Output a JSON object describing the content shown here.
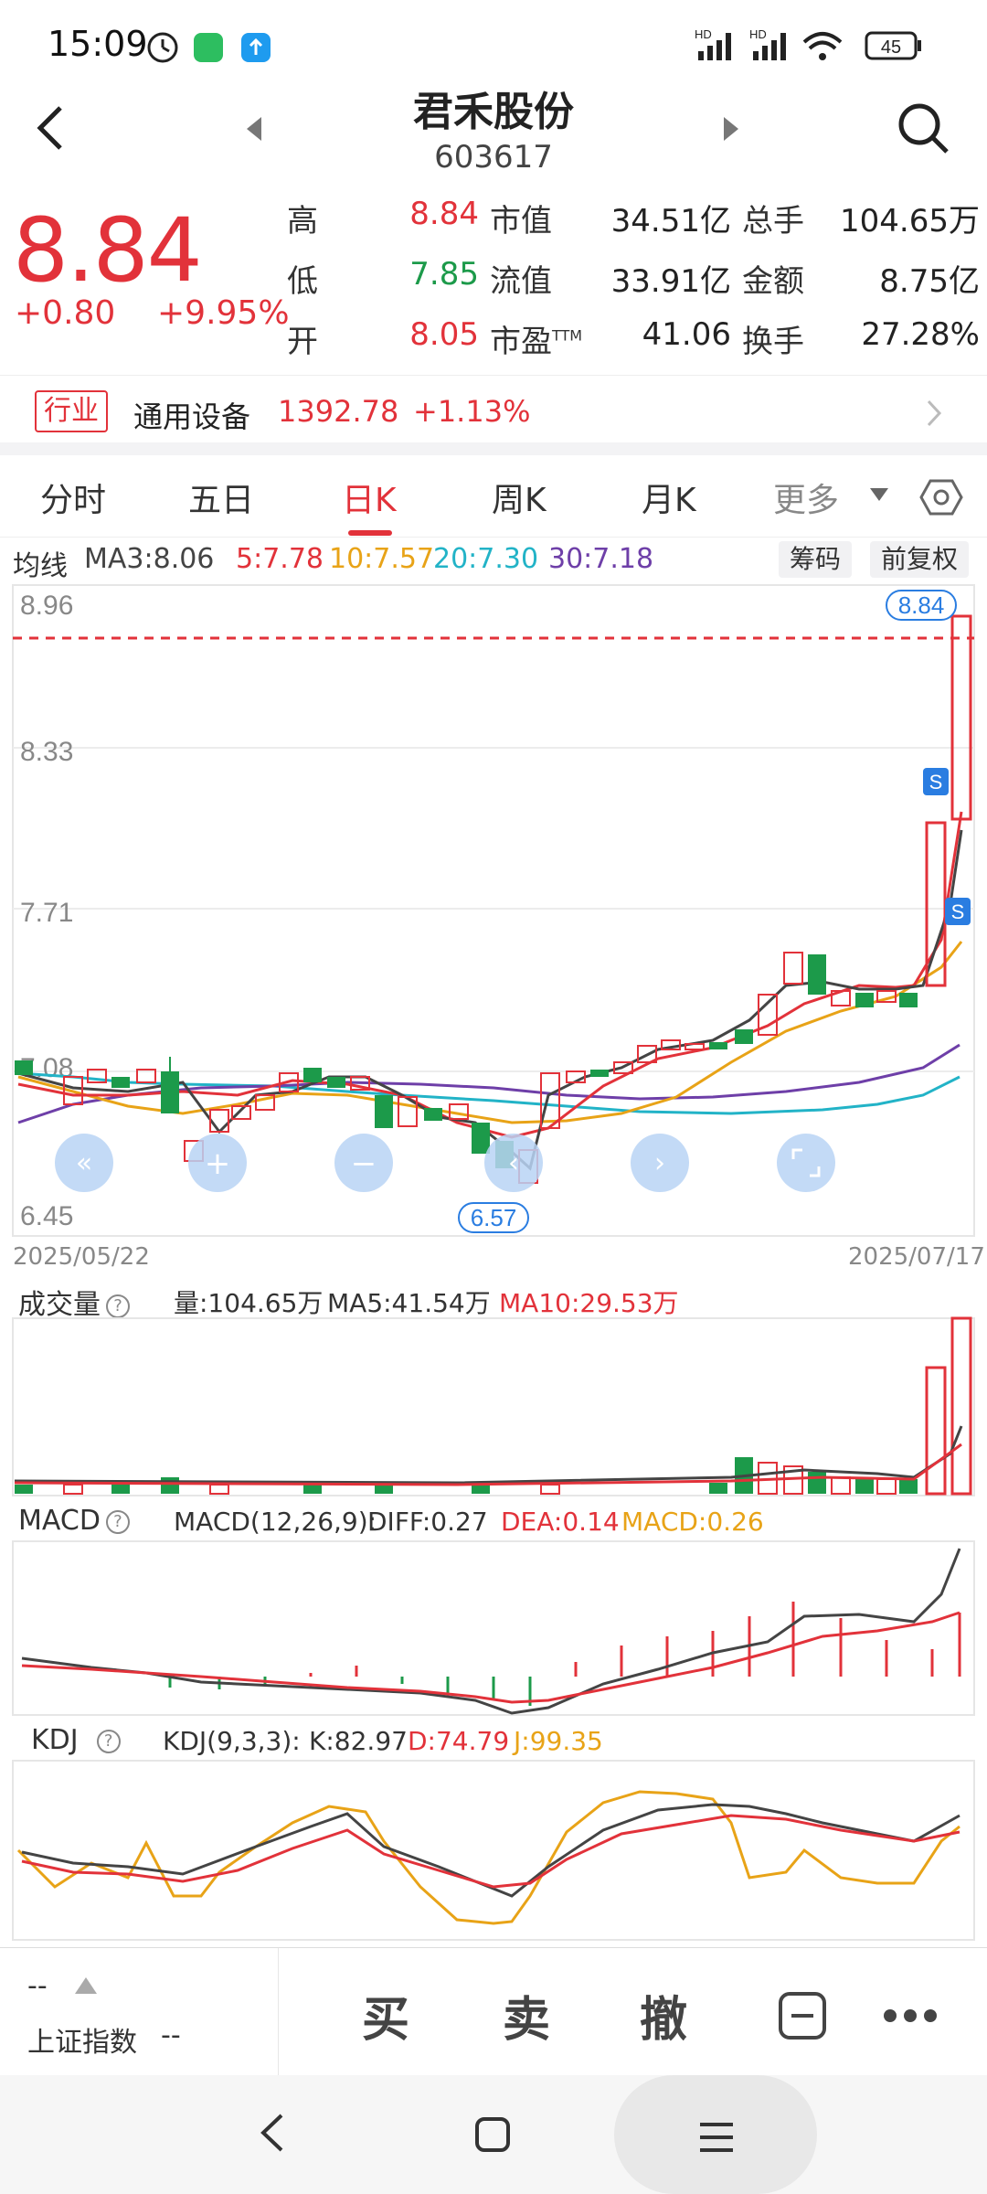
{
  "status": {
    "time": "15:09",
    "battery": "45"
  },
  "header": {
    "name": "君禾股份",
    "code": "603617"
  },
  "price": {
    "last": "8.84",
    "change": "+0.80",
    "pct": "+9.95%"
  },
  "quote": {
    "col1": [
      {
        "label": "高",
        "value": "8.84",
        "color": "#e2323a"
      },
      {
        "label": "低",
        "value": "7.85",
        "color": "#1c9a4a"
      },
      {
        "label": "开",
        "value": "8.05",
        "color": "#e2323a"
      }
    ],
    "col2": [
      {
        "label": "市值",
        "value": "34.51亿"
      },
      {
        "label": "流值",
        "value": "33.91亿"
      },
      {
        "label": "市盈",
        "sup": "TTM",
        "value": "41.06"
      }
    ],
    "col3": [
      {
        "label": "总手",
        "value": "104.65万"
      },
      {
        "label": "金额",
        "value": "8.75亿"
      },
      {
        "label": "换手",
        "value": "27.28%"
      }
    ]
  },
  "industry": {
    "tag": "行业",
    "name": "通用设备",
    "value": "1392.78",
    "change": "+1.13%"
  },
  "tabs": [
    "分时",
    "五日",
    "日K",
    "周K",
    "月K",
    "更多"
  ],
  "active_tab": "日K",
  "ma": {
    "label": "均线",
    "ma3": "MA3:8.06",
    "ma5": "5:7.78",
    "ma10": "10:7.57",
    "ma20": "20:7.30",
    "ma30": "30:7.18",
    "colors": {
      "ma3": "#444444",
      "ma5": "#e2323a",
      "ma10": "#e8a317",
      "ma20": "#22b3c7",
      "ma30": "#6e3fa8"
    }
  },
  "chips": [
    "筹码",
    "前复权"
  ],
  "kline": {
    "ticks": [
      "8.96",
      "8.33",
      "7.71",
      "7.08",
      "6.45"
    ],
    "high_tag": "8.84",
    "low_tag": "6.57",
    "start_date": "2025/05/22",
    "end_date": "2025/07/17",
    "marker": "S"
  },
  "volume": {
    "label": "成交量",
    "vol": "量:104.65万",
    "ma5": "MA5:41.54万",
    "ma10": "MA10:29.53万"
  },
  "macd": {
    "label": "MACD",
    "params": "MACD(12,26,9):",
    "diff": "DIFF:0.27",
    "dea": "DEA:0.14",
    "macd": "MACD:0.26"
  },
  "kdj": {
    "label": "KDJ",
    "params": "KDJ(9,3,3):",
    "k": "K:82.97",
    "d": "D:74.79",
    "j": "J:99.35"
  },
  "bottom": {
    "index_label": "上证指数",
    "index_val": "--",
    "index_top": "--",
    "buy": "买",
    "sell": "卖",
    "cancel": "撤"
  }
}
